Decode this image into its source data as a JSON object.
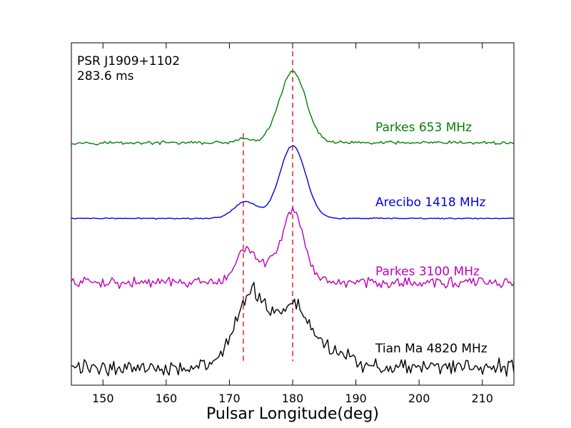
{
  "chart_data": {
    "type": "line",
    "title": "",
    "xlabel": "Pulsar Longitude(deg)",
    "ylabel": "",
    "xlim": [
      145,
      215
    ],
    "ylim": [
      0,
      1
    ],
    "xticks": [
      150,
      160,
      170,
      180,
      190,
      200,
      210
    ],
    "annotation_lines": [
      "PSR J1909+1102",
      "283.6 ms"
    ],
    "reference_lines": [
      {
        "x": 180,
        "color": "#e03030",
        "y_top": 0.975
      },
      {
        "x": 172.2,
        "color": "#e03030",
        "y_top": 0.736
      }
    ],
    "series": [
      {
        "name": "Parkes 653 MHz",
        "color": "#008000",
        "base": 0.708,
        "noise": 0.0035,
        "components": [
          {
            "center": 180.0,
            "amp": 0.207,
            "width": 2.1
          },
          {
            "center": 172.3,
            "amp": 0.012,
            "width": 1.0
          }
        ]
      },
      {
        "name": "Arecibo 1418 MHz",
        "color": "#0000dd",
        "base": 0.487,
        "noise": 0.0012,
        "components": [
          {
            "center": 180.0,
            "amp": 0.213,
            "width": 2.05
          },
          {
            "center": 172.6,
            "amp": 0.049,
            "width": 1.9
          }
        ]
      },
      {
        "name": "Parkes 3100 MHz",
        "color": "#bb00bb",
        "base": 0.3,
        "noise": 0.011,
        "components": [
          {
            "center": 180.2,
            "amp": 0.19,
            "width": 1.6
          },
          {
            "center": 172.5,
            "amp": 0.095,
            "width": 1.4
          },
          {
            "center": 177.0,
            "amp": 0.055,
            "width": 2.2
          }
        ]
      },
      {
        "name": "Tian Ma 4820 MHz",
        "color": "#000000",
        "base": 0.052,
        "noise": 0.017,
        "components": [
          {
            "center": 173.6,
            "amp": 0.215,
            "width": 2.6
          },
          {
            "center": 180.4,
            "amp": 0.175,
            "width": 2.5
          },
          {
            "center": 186.5,
            "amp": 0.045,
            "width": 2.5
          }
        ]
      }
    ]
  }
}
